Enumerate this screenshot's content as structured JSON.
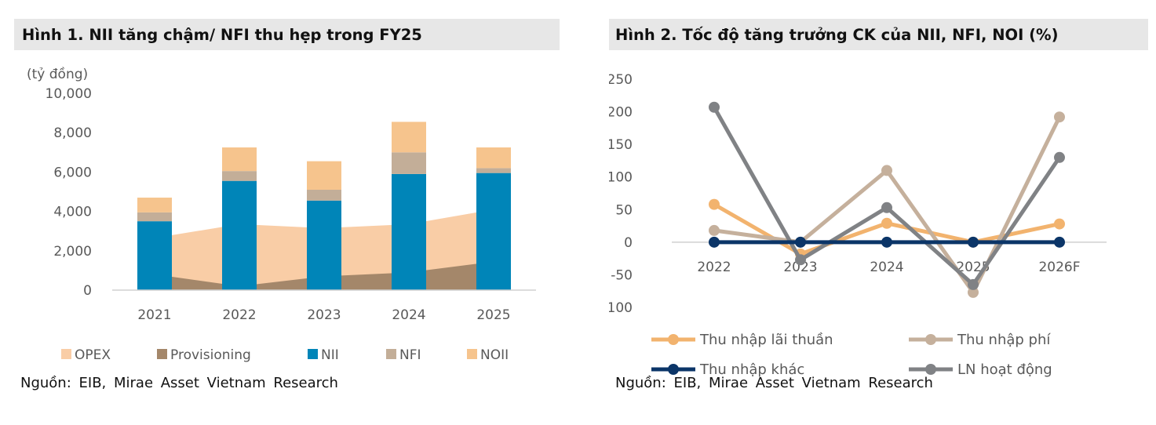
{
  "figure1": {
    "title": "Hình 1. NII tăng chậm/ NFI thu hẹp trong FY25",
    "source": "Nguồn: EIB, Mirae Asset Vietnam Research"
  },
  "figure2": {
    "title": "Hình 2. Tốc độ tăng trưởng CK của NII, NFI, NOI (%)",
    "source": "Nguồn: EIB, Mirae Asset Vietnam Research"
  },
  "chart_data": [
    {
      "type": "bar",
      "subtype": "stacked bar with area",
      "unit_label": "(tỷ đồng)",
      "categories": [
        "2021",
        "2022",
        "2023",
        "2024",
        "2025"
      ],
      "ylim": [
        0,
        10000
      ],
      "yticks": [
        0,
        2000,
        4000,
        6000,
        8000,
        10000
      ],
      "ytick_labels": [
        "0",
        "2,000",
        "4,000",
        "6,000",
        "8,000",
        "10,000"
      ],
      "grid": false,
      "legend_position": "bottom",
      "area_series": [
        {
          "name": "OPEX",
          "values": [
            2650,
            3350,
            3150,
            3350,
            4100
          ],
          "color": "#f9cda6"
        },
        {
          "name": "Provisioning",
          "values": [
            800,
            200,
            700,
            900,
            1450
          ],
          "color": "#a4876a"
        }
      ],
      "bar_series": [
        {
          "name": "NII",
          "values": [
            3500,
            5550,
            4550,
            5900,
            5950
          ],
          "color": "#0085b8"
        },
        {
          "name": "NFI",
          "values": [
            450,
            500,
            550,
            1100,
            250
          ],
          "color": "#c3ae98"
        },
        {
          "name": "NOII",
          "values": [
            750,
            1200,
            1450,
            1550,
            1050
          ],
          "color": "#f6c48d"
        }
      ],
      "legend_order": [
        "OPEX",
        "Provisioning",
        "NII",
        "NFI",
        "NOII"
      ]
    },
    {
      "type": "line",
      "categories": [
        "2022",
        "2023",
        "2024",
        "2025",
        "2026F"
      ],
      "ylim": [
        -100,
        250
      ],
      "yticks": [
        -100,
        -50,
        0,
        50,
        100,
        150,
        200,
        250
      ],
      "ytick_labels": [
        "-100",
        "-50",
        "0",
        "50",
        "100",
        "150",
        "200",
        "250"
      ],
      "grid": false,
      "legend_position": "bottom",
      "series": [
        {
          "name": "Thu nhập lãi thuần",
          "values": [
            58,
            -18,
            29,
            0,
            28
          ],
          "color": "#f2b36e"
        },
        {
          "name": "Thu nhập phí",
          "values": [
            18,
            0,
            110,
            -77,
            192
          ],
          "color": "#c5b09c"
        },
        {
          "name": "Thu nhập khác",
          "values": [
            0,
            0,
            0,
            0,
            0
          ],
          "color": "#0b3568"
        },
        {
          "name": "LN hoạt động",
          "values": [
            207,
            -27,
            53,
            -65,
            130
          ],
          "color": "#808285"
        }
      ]
    }
  ]
}
